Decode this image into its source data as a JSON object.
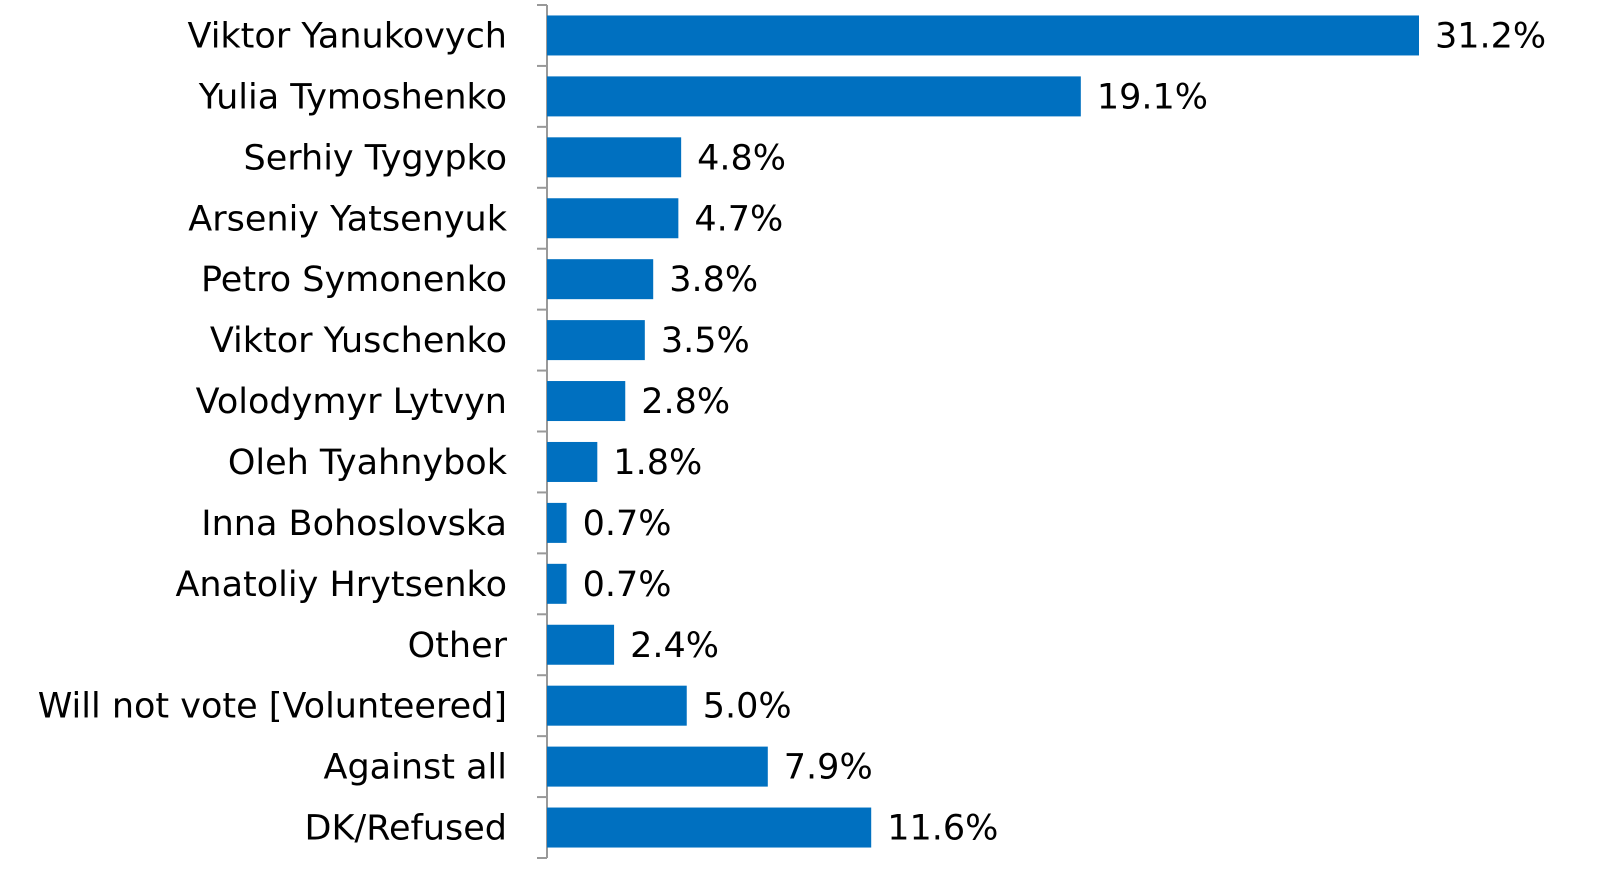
{
  "chart_data": {
    "type": "bar",
    "orientation": "horizontal",
    "categories": [
      "Viktor Yanukovych",
      "Yulia Tymoshenko",
      "Serhiy Tygypko",
      "Arseniy Yatsenyuk",
      "Petro Symonenko",
      "Viktor Yuschenko",
      "Volodymyr Lytvyn",
      "Oleh Tyahnybok",
      "Inna Bohoslovska",
      "Anatoliy Hrytsenko",
      "Other",
      "Will not vote [Volunteered]",
      "Against all",
      "DK/Refused"
    ],
    "values": [
      31.2,
      19.1,
      4.8,
      4.7,
      3.8,
      3.5,
      2.8,
      1.8,
      0.7,
      0.7,
      2.4,
      5.0,
      7.9,
      11.6
    ],
    "value_labels": [
      "31.2%",
      "19.1%",
      "4.8%",
      "4.7%",
      "3.8%",
      "3.5%",
      "2.8%",
      "1.8%",
      "0.7%",
      "0.7%",
      "2.4%",
      "5.0%",
      "7.9%",
      "11.6%"
    ],
    "color": "#0070c0"
  }
}
